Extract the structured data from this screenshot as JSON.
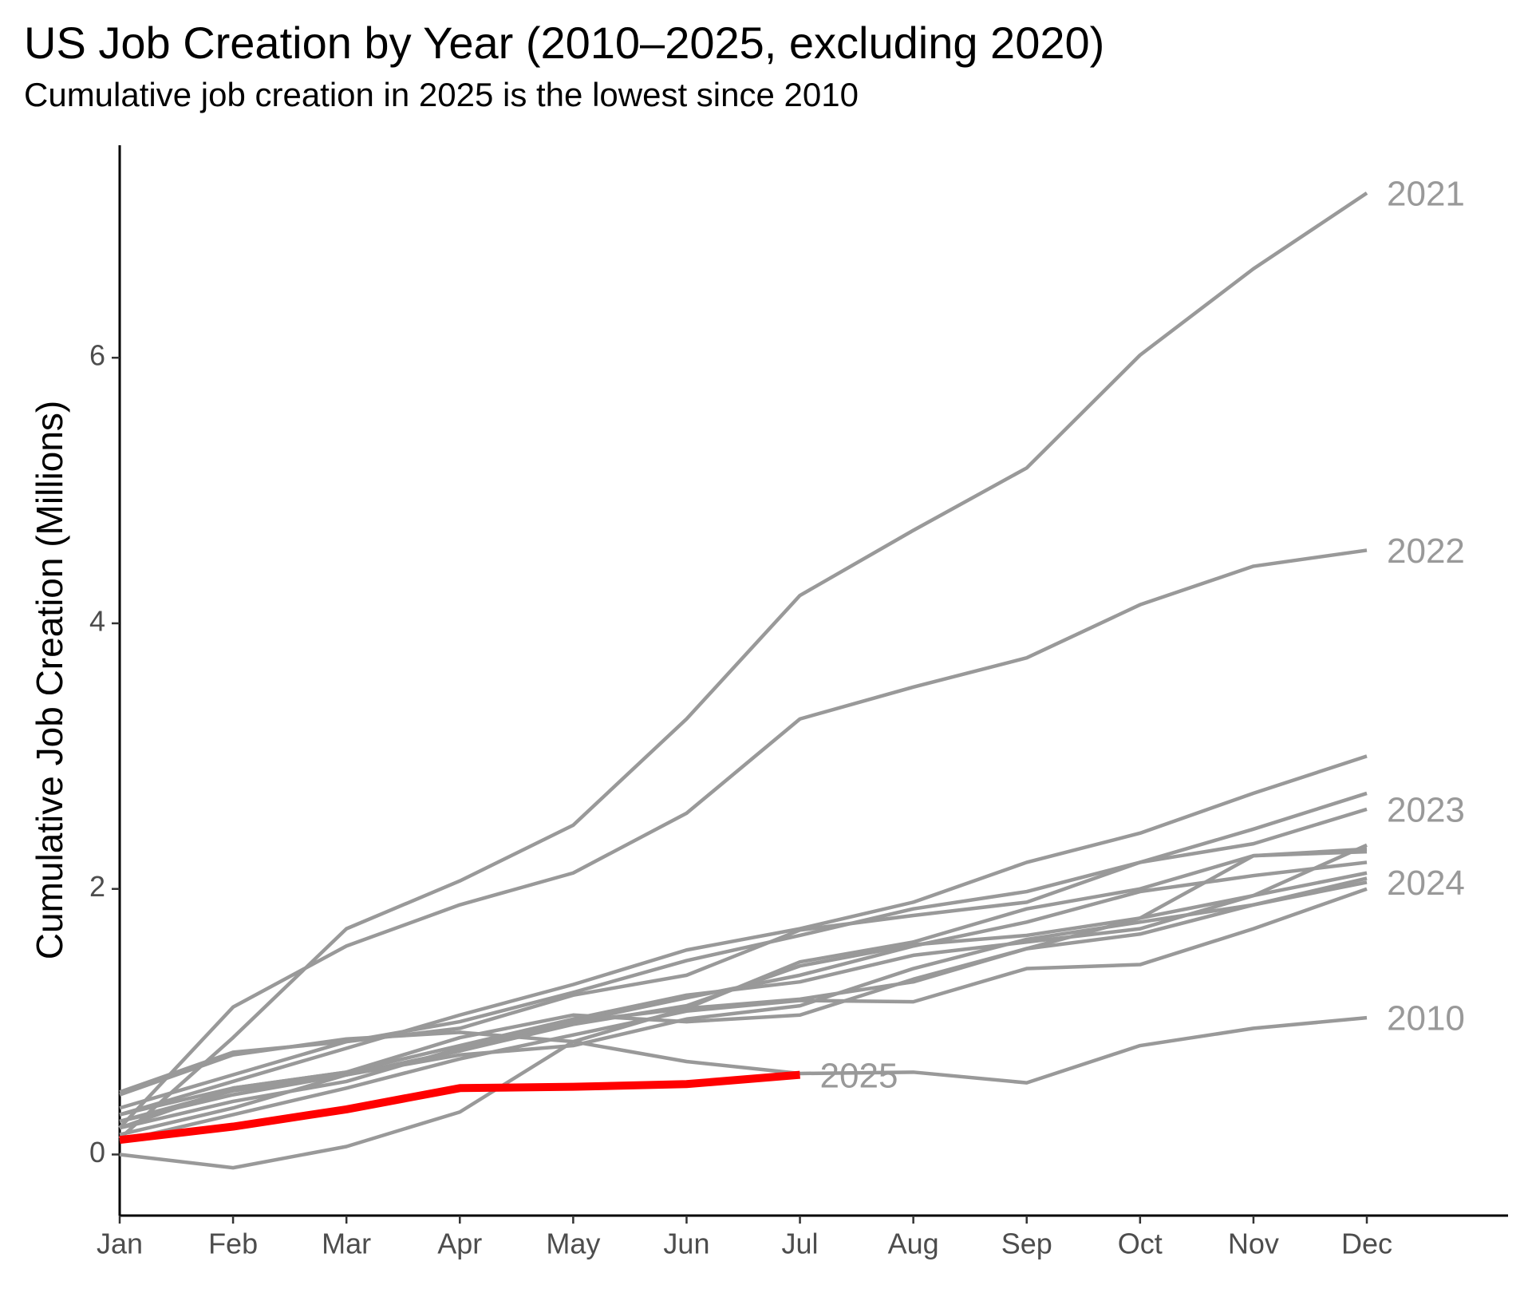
{
  "chart_data": {
    "type": "line",
    "title": "US Job Creation by Year (2010–2025, excluding 2020)",
    "subtitle": "Cumulative job creation in 2025 is the lowest since 2010",
    "y_label": "Cumulative Job Creation (Millions)",
    "categories": [
      "Jan",
      "Feb",
      "Mar",
      "Apr",
      "May",
      "Jun",
      "Jul",
      "Aug",
      "Sep",
      "Oct",
      "Nov",
      "Dec"
    ],
    "ylim": [
      -0.46,
      7.6
    ],
    "yticks": [
      0,
      2,
      4,
      6
    ],
    "grid": false,
    "series": [
      {
        "name": "2010",
        "color": "#999999",
        "values": [
          0.45,
          0.75,
          0.87,
          0.92,
          0.85,
          0.7,
          0.61,
          0.62,
          0.54,
          0.82,
          0.95,
          1.03
        ]
      },
      {
        "color": "#999999",
        "values": [
          0.3,
          0.55,
          0.8,
          1.05,
          1.28,
          1.54,
          1.7,
          1.9,
          2.2,
          2.42,
          2.72,
          3.0
        ]
      },
      {
        "color": "#999999",
        "values": [
          0.35,
          0.6,
          0.85,
          1.0,
          1.22,
          1.46,
          1.65,
          1.85,
          1.98,
          2.2,
          2.45,
          2.72
        ]
      },
      {
        "color": "#999999",
        "values": [
          0.2,
          0.5,
          0.62,
          0.82,
          1.02,
          1.2,
          1.3,
          1.5,
          1.6,
          1.7,
          1.95,
          2.33
        ]
      },
      {
        "color": "#999999",
        "values": [
          0.15,
          0.35,
          0.6,
          0.78,
          1.0,
          1.1,
          1.17,
          1.3,
          1.55,
          1.78,
          2.25,
          2.3
        ]
      },
      {
        "color": "#999999",
        "values": [
          0.2,
          0.4,
          0.55,
          0.8,
          1.0,
          1.18,
          1.35,
          1.57,
          1.75,
          1.98,
          2.1,
          2.2
        ]
      },
      {
        "color": "#999999",
        "values": [
          0.25,
          0.45,
          0.6,
          0.78,
          0.98,
          1.12,
          1.42,
          1.58,
          1.65,
          1.78,
          1.95,
          2.12
        ]
      },
      {
        "color": "#999999",
        "values": [
          0.1,
          0.3,
          0.5,
          0.72,
          0.9,
          1.08,
          1.16,
          1.15,
          1.4,
          1.43,
          1.7,
          2.0
        ]
      },
      {
        "color": "#999999",
        "values": [
          0.3,
          0.5,
          0.62,
          0.88,
          1.05,
          1.0,
          1.05,
          1.32,
          1.55,
          1.66,
          1.88,
          2.08
        ]
      },
      {
        "color": "#999999",
        "values": [
          0,
          -0.1,
          0.06,
          0.32,
          0.85,
          1.1,
          1.45,
          1.6,
          1.85,
          2.0,
          2.25,
          2.28
        ]
      },
      {
        "name": "2021",
        "color": "#999999",
        "values": [
          0.12,
          0.88,
          1.7,
          2.06,
          2.48,
          3.28,
          4.21,
          4.7,
          5.17,
          6.02,
          6.67,
          7.24
        ]
      },
      {
        "name": "2022",
        "color": "#999999",
        "values": [
          0.2,
          1.11,
          1.57,
          1.88,
          2.12,
          2.57,
          3.28,
          3.52,
          3.74,
          4.14,
          4.43,
          4.55
        ]
      },
      {
        "name": "2023",
        "color": "#999999",
        "values": [
          0.47,
          0.77,
          0.85,
          0.95,
          1.2,
          1.35,
          1.69,
          1.8,
          1.9,
          2.2,
          2.34,
          2.6
        ]
      },
      {
        "name": "2024",
        "color": "#999999",
        "values": [
          0.25,
          0.48,
          0.6,
          0.75,
          0.82,
          1.02,
          1.12,
          1.4,
          1.62,
          1.75,
          1.88,
          2.05
        ]
      },
      {
        "name": "2025",
        "color": "#ff0000",
        "values": [
          0.11,
          0.21,
          0.34,
          0.5,
          0.51,
          0.53,
          0.6,
          null,
          null,
          null,
          null,
          null
        ]
      }
    ]
  }
}
